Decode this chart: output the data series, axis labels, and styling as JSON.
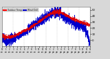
{
  "background_color": "#d8d8d8",
  "plot_bg": "#ffffff",
  "legend_labels": [
    "Outdoor Temp",
    "Wind Chill"
  ],
  "legend_colors": [
    "#ff0000",
    "#0000cc"
  ],
  "ylim": [
    -10,
    55
  ],
  "xlim": [
    0,
    1440
  ],
  "ylabel_ticks": [
    0,
    10,
    20,
    30,
    40,
    50
  ],
  "temp_color": "#dd0000",
  "windchill_color": "#0000cc",
  "grid_color": "#aaaaaa",
  "grid_interval": 180,
  "tick_label_color": "#000000"
}
